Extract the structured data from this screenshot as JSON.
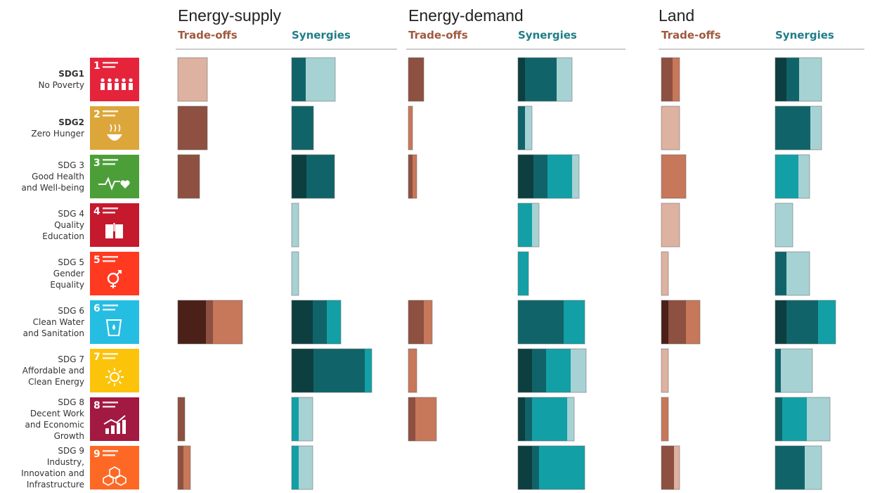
{
  "sectors": [
    {
      "id": "energy-supply",
      "title": "Energy-supply"
    },
    {
      "id": "energy-demand",
      "title": "Energy-demand"
    },
    {
      "id": "land",
      "title": "Land"
    }
  ],
  "subheaders": {
    "tradeoffs": "Trade-offs",
    "synergies": "Synergies"
  },
  "colors": {
    "trade": [
      "#4a2019",
      "#8e5040",
      "#c7775a",
      "#deb2a1"
    ],
    "syn": [
      "#0d3e40",
      "#106469",
      "#12a0a6",
      "#a7d2d4"
    ]
  },
  "sdgs": [
    {
      "code": "SDG1",
      "name": [
        "No Poverty"
      ],
      "bold": true,
      "num": "1",
      "color": "#e5243b",
      "icon": "people-icon"
    },
    {
      "code": "SDG2",
      "name": [
        "Zero Hunger"
      ],
      "bold": true,
      "num": "2",
      "color": "#dda63a",
      "icon": "bowl-icon"
    },
    {
      "code": "SDG 3",
      "name": [
        "Good Health",
        "and Well-being"
      ],
      "bold": false,
      "num": "3",
      "color": "#4c9f38",
      "icon": "heartbeat-icon"
    },
    {
      "code": "SDG 4",
      "name": [
        "Quality",
        "Education"
      ],
      "bold": false,
      "num": "4",
      "color": "#c5192d",
      "icon": "book-icon"
    },
    {
      "code": "SDG 5",
      "name": [
        "Gender",
        "Equality"
      ],
      "bold": false,
      "num": "5",
      "color": "#ff3a21",
      "icon": "gender-icon"
    },
    {
      "code": "SDG 6",
      "name": [
        "Clean Water",
        "and Sanitation"
      ],
      "bold": false,
      "num": "6",
      "color": "#26bde2",
      "icon": "water-icon"
    },
    {
      "code": "SDG 7",
      "name": [
        "Affordable and",
        "Clean Energy"
      ],
      "bold": false,
      "num": "7",
      "color": "#fcc30b",
      "icon": "sun-icon"
    },
    {
      "code": "SDG 8",
      "name": [
        "Decent Work",
        "and Economic",
        "Growth"
      ],
      "bold": false,
      "num": "8",
      "color": "#a21942",
      "icon": "growth-chart-icon"
    },
    {
      "code": "SDG 9",
      "name": [
        "Industry,",
        "Innovation and",
        "Infrastructure"
      ],
      "bold": false,
      "num": "9",
      "color": "#fd6925",
      "icon": "cubes-icon"
    }
  ],
  "chart_data": {
    "type": "bar",
    "stacked": true,
    "orientation": "horizontal",
    "categories": [
      "SDG1",
      "SDG2",
      "SDG 3",
      "SDG 4",
      "SDG 5",
      "SDG 6",
      "SDG 7",
      "SDG 8",
      "SDG 9"
    ],
    "panels": [
      {
        "sector": "Energy-supply",
        "kind": "Trade-offs",
        "values": [
          [
            0,
            0,
            0,
            42
          ],
          [
            0,
            42,
            0,
            0
          ],
          [
            0,
            31,
            0,
            0
          ],
          [
            0,
            0,
            0,
            0
          ],
          [
            0,
            0,
            0,
            0
          ],
          [
            40,
            10,
            42,
            0
          ],
          [
            0,
            0,
            0,
            0
          ],
          [
            0,
            10,
            0,
            0
          ],
          [
            0,
            8,
            10,
            0
          ]
        ]
      },
      {
        "sector": "Energy-supply",
        "kind": "Synergies",
        "values": [
          [
            0,
            20,
            0,
            42
          ],
          [
            0,
            31,
            0,
            0
          ],
          [
            21,
            40,
            0,
            0
          ],
          [
            0,
            0,
            0,
            10
          ],
          [
            0,
            0,
            0,
            10
          ],
          [
            30,
            20,
            20,
            0
          ],
          [
            31,
            73,
            10,
            0
          ],
          [
            0,
            0,
            10,
            20
          ],
          [
            0,
            0,
            10,
            20
          ]
        ]
      },
      {
        "sector": "Energy-demand",
        "kind": "Trade-offs",
        "values": [
          [
            0,
            22,
            0,
            0
          ],
          [
            0,
            0,
            6,
            0
          ],
          [
            0,
            6,
            6,
            0
          ],
          [
            0,
            0,
            0,
            0
          ],
          [
            0,
            0,
            0,
            0
          ],
          [
            0,
            22,
            12,
            0
          ],
          [
            0,
            0,
            12,
            0
          ],
          [
            0,
            10,
            30,
            0
          ],
          [
            0,
            0,
            0,
            0
          ]
        ]
      },
      {
        "sector": "Energy-demand",
        "kind": "Synergies",
        "values": [
          [
            10,
            45,
            0,
            22
          ],
          [
            0,
            10,
            0,
            10
          ],
          [
            22,
            20,
            35,
            10
          ],
          [
            0,
            0,
            20,
            10
          ],
          [
            0,
            0,
            15,
            0
          ],
          [
            0,
            65,
            30,
            0
          ],
          [
            20,
            20,
            35,
            22
          ],
          [
            10,
            10,
            50,
            10
          ],
          [
            20,
            10,
            65,
            0
          ]
        ]
      },
      {
        "sector": "Land",
        "kind": "Trade-offs",
        "values": [
          [
            0,
            16,
            10,
            0
          ],
          [
            0,
            0,
            0,
            26
          ],
          [
            0,
            0,
            35,
            0
          ],
          [
            0,
            0,
            0,
            26
          ],
          [
            0,
            0,
            0,
            10
          ],
          [
            10,
            25,
            20,
            0
          ],
          [
            0,
            0,
            0,
            10
          ],
          [
            0,
            0,
            10,
            0
          ],
          [
            0,
            18,
            0,
            8
          ]
        ]
      },
      {
        "sector": "Land",
        "kind": "Synergies",
        "values": [
          [
            16,
            18,
            0,
            32
          ],
          [
            0,
            50,
            0,
            16
          ],
          [
            0,
            0,
            33,
            16
          ],
          [
            0,
            0,
            0,
            25
          ],
          [
            0,
            16,
            0,
            33
          ],
          [
            16,
            45,
            25,
            0
          ],
          [
            0,
            8,
            0,
            45
          ],
          [
            0,
            10,
            35,
            33
          ],
          [
            0,
            42,
            0,
            24
          ]
        ]
      }
    ],
    "segment_order": [
      "darkest",
      "dark",
      "medium",
      "light"
    ]
  }
}
